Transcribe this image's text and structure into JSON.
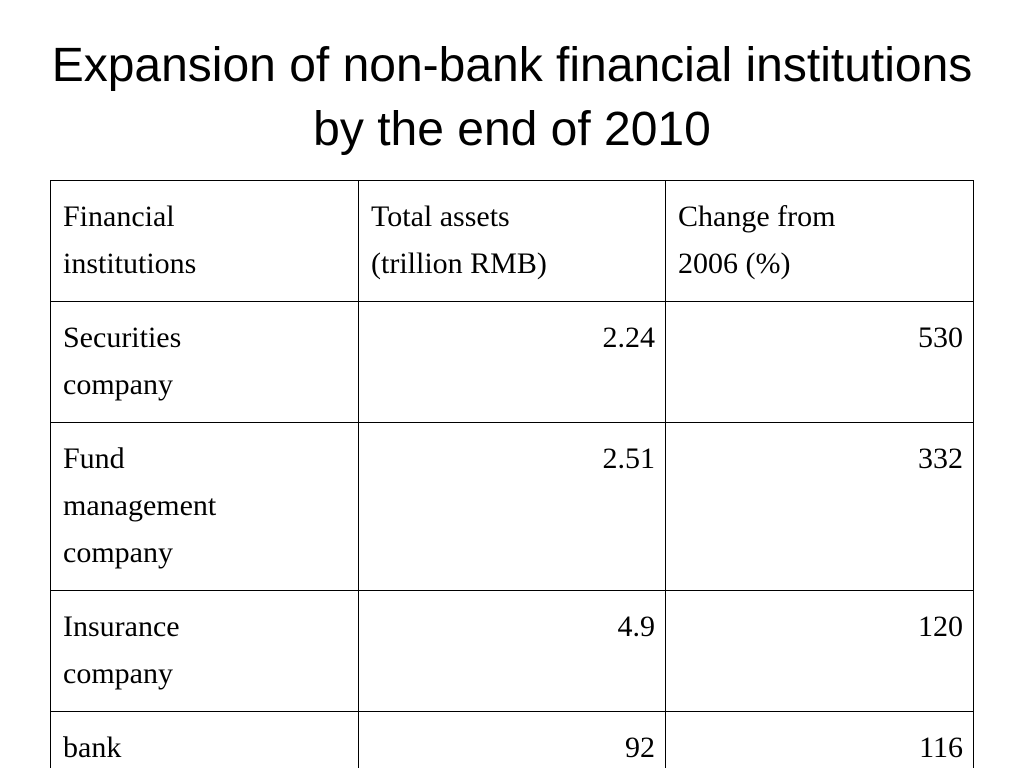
{
  "title": "Expansion of non-bank financial institutions by the end of 2010",
  "table": {
    "header": [
      "Financial institutions",
      "Total assets (trillion RMB)",
      "Change from 2006 (%)"
    ],
    "rows": [
      [
        "Securities company",
        2.24,
        530
      ],
      [
        "Fund management company",
        2.51,
        332
      ],
      [
        "Insurance company",
        4.9,
        120
      ],
      [
        "bank",
        92,
        116
      ]
    ]
  }
}
